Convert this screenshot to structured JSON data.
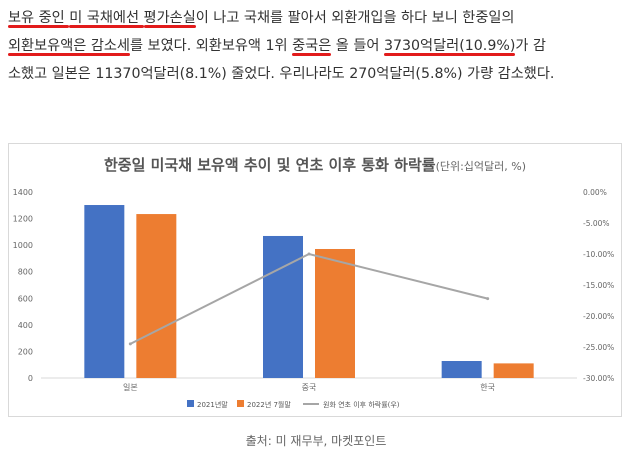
{
  "article": {
    "line1": [
      {
        "text": "보유 중인 ",
        "hl": true
      },
      {
        "text": "미 국채에선 ",
        "hl": true
      },
      {
        "text": "평가손실",
        "hl": true
      },
      {
        "text": "이 나고 국채를 팔아서 외환개입을 하다 보니 한중일의",
        "hl": false
      }
    ],
    "line2": [
      {
        "text": "외환보유액은 감소세",
        "hl": true
      },
      {
        "text": "를 보였다. 외환보유액 1위 ",
        "hl": false
      },
      {
        "text": "중국은",
        "hl": true
      },
      {
        "text": " 올 들어 ",
        "hl": false
      },
      {
        "text": "3730억달러(10.9%)",
        "hl": true
      },
      {
        "text": "가 감",
        "hl": false
      }
    ],
    "line3": [
      {
        "text": "소했고 일본은 11370억달러(8.1%) 줄었다. 우리나라도 270억달러(5.8%) 가량 감소했다.",
        "hl": false
      }
    ]
  },
  "chart_title": {
    "main": "한중일 미국채 보유액 추이 및 연초 이후 통화 하락률",
    "unit": "(단위:십억달러, %)"
  },
  "colors": {
    "bar2021": "#4472c4",
    "bar2022": "#ed7d31",
    "line": "#a6a6a6",
    "underline": "#e21b1b"
  },
  "chart_data": {
    "type": "bar",
    "title": "한중일 미국채 보유액 추이 및 연초 이후 통화 하락률",
    "subtitle": "(단위:십억달러, %)",
    "categories": [
      "일본",
      "중국",
      "한국"
    ],
    "series": [
      {
        "name": "2021년말",
        "values": [
          1302,
          1069,
          128
        ],
        "axis": "left",
        "color": "#4472c4"
      },
      {
        "name": "2022년 7월말",
        "values": [
          1234,
          971,
          110
        ],
        "axis": "left",
        "color": "#ed7d31"
      },
      {
        "name": "원화 연초 이후 하락률(우)",
        "values": [
          -24.5,
          -10.0,
          -17.2
        ],
        "axis": "right",
        "type": "line",
        "color": "#a6a6a6"
      }
    ],
    "left_axis": {
      "min": 0,
      "max": 1400,
      "step": 200,
      "ticks": [
        "0",
        "200",
        "400",
        "600",
        "800",
        "1000",
        "1200",
        "1400"
      ]
    },
    "right_axis": {
      "min": -30,
      "max": 0,
      "step": 5,
      "ticks": [
        "0.00%",
        "-5.00%",
        "-10.00%",
        "-15.00%",
        "-20.00%",
        "-25.00%",
        "-30.00%"
      ]
    },
    "legend_position": "bottom"
  },
  "source": "출처: 미 재무부, 마켓포인트"
}
